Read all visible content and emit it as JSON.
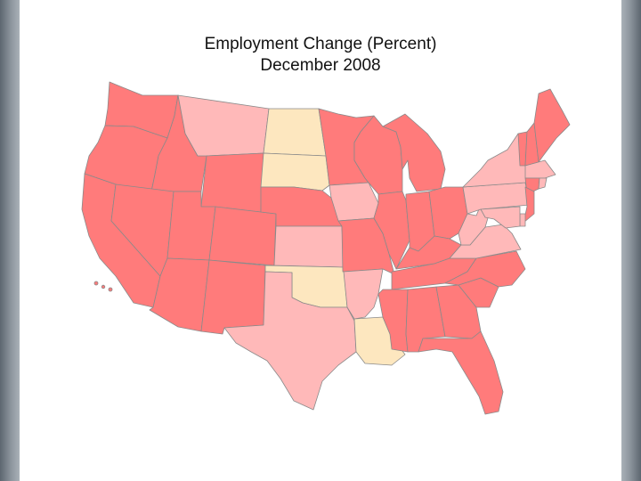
{
  "map": {
    "title": "Employment Change (Percent)",
    "subtitle": "December 2008"
  },
  "colors": {
    "decline_large": "#ff7b7b",
    "decline_small": "#ffb9b9",
    "growth": "#fde7bf",
    "border": "#8a8a8a"
  },
  "legend_classes": {
    "dark": "decline_large",
    "light": "decline_small",
    "cream": "growth"
  },
  "states": {
    "WA": "dark",
    "OR": "dark",
    "CA": "dark",
    "ID": "dark",
    "NV": "dark",
    "MT": "light",
    "WY": "dark",
    "UT": "dark",
    "AZ": "dark",
    "CO": "dark",
    "NM": "dark",
    "ND": "cream",
    "SD": "cream",
    "NE": "dark",
    "KS": "light",
    "OK": "cream",
    "TX": "light",
    "MN": "dark",
    "IA": "light",
    "MO": "dark",
    "AR": "light",
    "LA": "cream",
    "WI": "dark",
    "IL": "dark",
    "MI": "dark",
    "IN": "dark",
    "OH": "dark",
    "KY": "dark",
    "TN": "dark",
    "MS": "dark",
    "AL": "dark",
    "GA": "dark",
    "FL": "dark",
    "SC": "dark",
    "NC": "dark",
    "VA": "light",
    "WV": "light",
    "PA": "light",
    "NY": "light",
    "VT": "dark",
    "NH": "dark",
    "ME": "dark",
    "MA": "light",
    "CT": "dark",
    "RI": "light",
    "NJ": "dark",
    "DE": "light",
    "MD": "light"
  }
}
